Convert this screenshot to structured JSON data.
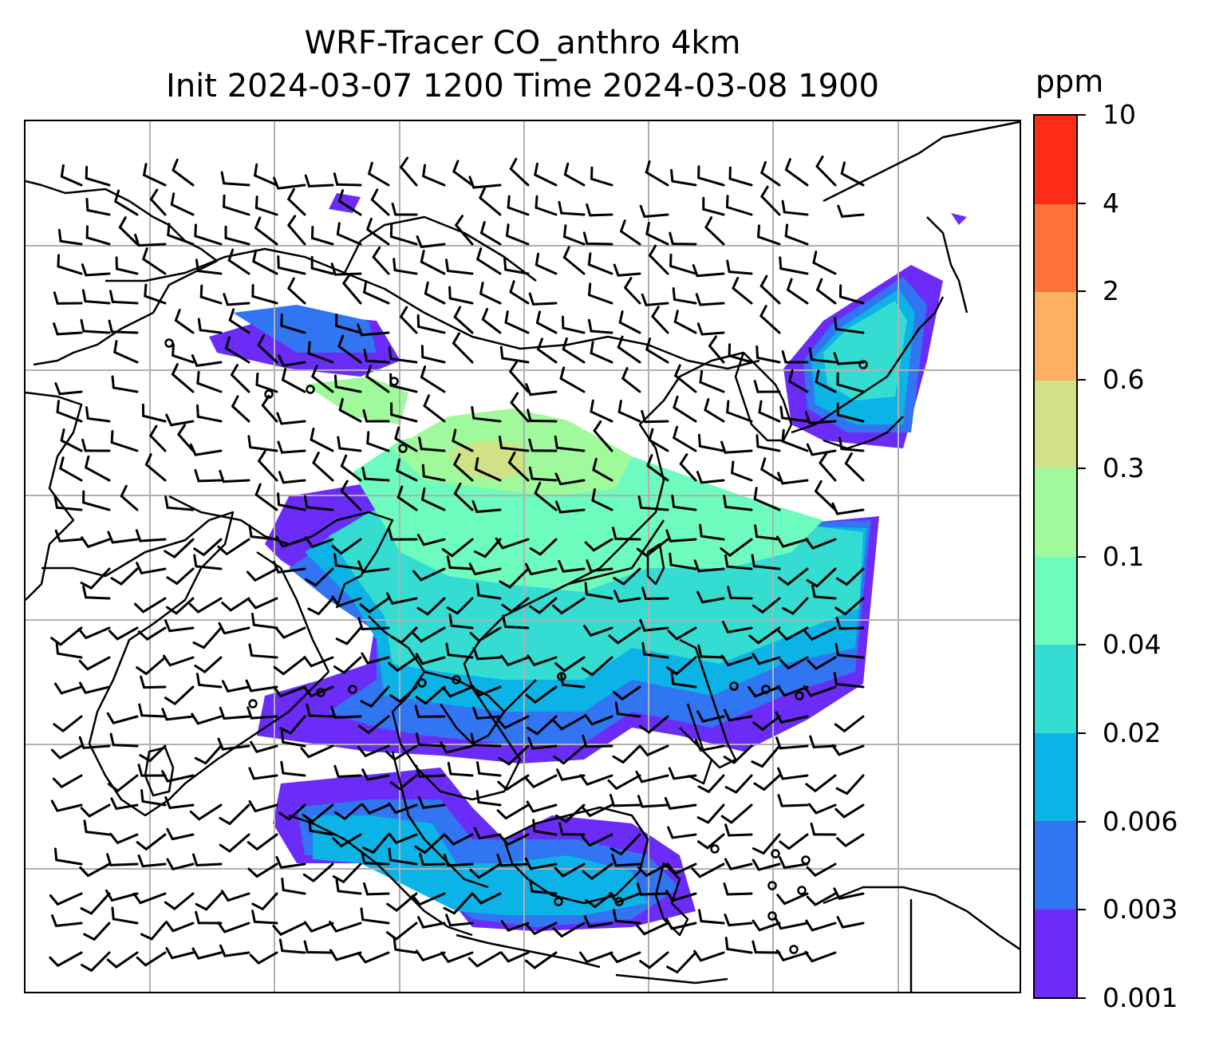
{
  "title_line1": "WRF-Tracer CO_anthro 4km",
  "title_line2": "Init 2024-03-07 1200 Time 2024-03-08 1900",
  "colorbar": {
    "unit": "ppm",
    "ticks": [
      "0.001",
      "0.003",
      "0.006",
      "0.02",
      "0.04",
      "0.1",
      "0.3",
      "0.6",
      "2",
      "4",
      "10"
    ],
    "colors": [
      "#6a2cf6",
      "#3175f2",
      "#0bb3e6",
      "#34dcd2",
      "#6efbbe",
      "#a0f99a",
      "#d0e285",
      "#fdaf62",
      "#ff733a",
      "#ff2d18"
    ]
  },
  "map": {
    "gridlines": "on",
    "wind_barbs": "shown",
    "background": "#ffffff"
  }
}
